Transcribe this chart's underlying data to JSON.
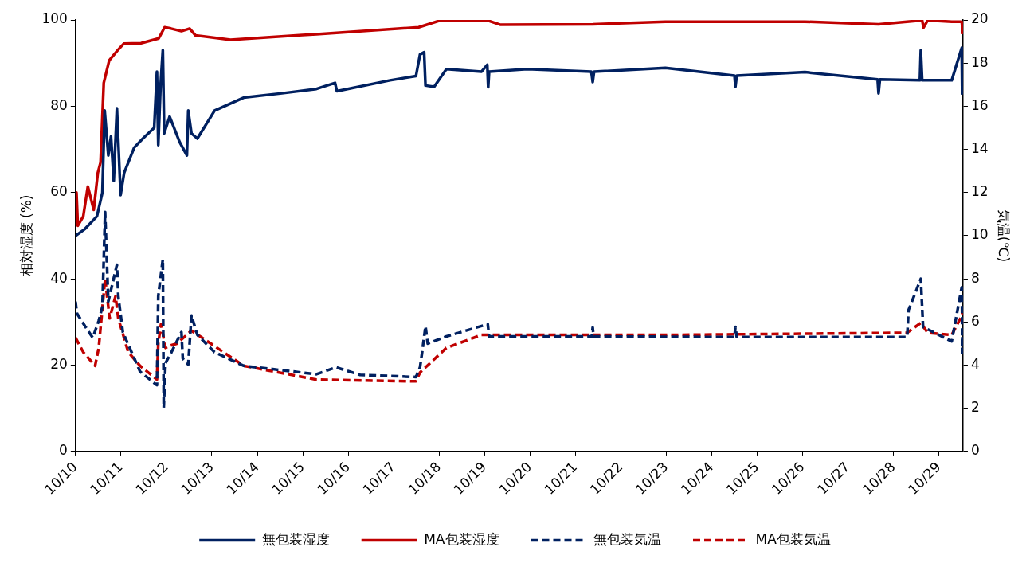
{
  "chart_data": {
    "type": "line",
    "ylabel": "相対湿度 (%)",
    "y2label": "気温(℃)",
    "xlim": [
      "--10-10",
      "--10-29T12:43"
    ],
    "xticks": [
      {
        "value": "--10-10",
        "label": "10/10"
      },
      {
        "value": "--10-11",
        "label": "10/11"
      },
      {
        "value": "--10-12",
        "label": "10/12"
      },
      {
        "value": "--10-13",
        "label": "10/13"
      },
      {
        "value": "--10-14",
        "label": "10/14"
      },
      {
        "value": "--10-15",
        "label": "10/15"
      },
      {
        "value": "--10-16",
        "label": "10/16"
      },
      {
        "value": "--10-17",
        "label": "10/17"
      },
      {
        "value": "--10-18",
        "label": "10/18"
      },
      {
        "value": "--10-19",
        "label": "10/19"
      },
      {
        "value": "--10-20",
        "label": "10/20"
      },
      {
        "value": "--10-21",
        "label": "10/21"
      },
      {
        "value": "--10-22",
        "label": "10/22"
      },
      {
        "value": "--10-23",
        "label": "10/23"
      },
      {
        "value": "--10-24",
        "label": "10/24"
      },
      {
        "value": "--10-25",
        "label": "10/25"
      },
      {
        "value": "--10-26",
        "label": "10/26"
      },
      {
        "value": "--10-27",
        "label": "10/27"
      },
      {
        "value": "--10-28",
        "label": "10/28"
      },
      {
        "value": "--10-29",
        "label": "10/29"
      }
    ],
    "ylim": [
      0,
      100
    ],
    "yticks": [
      0,
      20,
      40,
      60,
      80,
      100
    ],
    "y2lim": [
      0,
      20
    ],
    "y2ticks": [
      0,
      2,
      4,
      6,
      8,
      10,
      12,
      14,
      16,
      18,
      20
    ],
    "grid": false,
    "legend": "bottom",
    "marker": "none",
    "series": [
      {
        "name": "無包装湿度",
        "color": "#002060",
        "line_style": "solid",
        "x": [
          "--10-10T00:00",
          "--10-10T05:02",
          "--10-10T11:17",
          "--10-10T14:10",
          "--10-10T15:22",
          "--10-10T17:17",
          "--10-10T18:43",
          "--10-10T20:10",
          "--10-10T21:50",
          "--10-10T23:46",
          "--10-11T01:41",
          "--10-11T06:58",
          "--10-11T11:31",
          "--10-11T17:31",
          "--10-11T18:58",
          "--10-11T19:41",
          "--10-11T20:53",
          "--10-11T22:05",
          "--10-11T22:48",
          "--10-12T01:41",
          "--10-12T06:58",
          "--10-12T10:48",
          "--10-12T11:31",
          "--10-12T13:12",
          "--10-12T16:19",
          "--10-13T01:26",
          "--10-13T16:48",
          "--10-14T12:58",
          "--10-15T07:12",
          "--10-15T17:02",
          "--10-15T18:00",
          "--10-16T22:05",
          "--10-17T11:46",
          "--10-17T13:55",
          "--10-17T16:05",
          "--10-17T16:48",
          "--10-17T21:22",
          "--10-18T03:50",
          "--10-18T22:19",
          "--10-19T01:26",
          "--10-19T01:55",
          "--10-19T02:24",
          "--10-19T22:34",
          "--10-21T08:24",
          "--10-21T09:07",
          "--10-21T09:50",
          "--10-22T23:31",
          "--10-24T12:00",
          "--10-24T12:29",
          "--10-24T13:12",
          "--10-26T01:12",
          "--10-27T15:36",
          "--10-27T16:05",
          "--10-27T16:48",
          "--10-28T13:55",
          "--10-28T14:24",
          "--10-28T15:07",
          "--10-29T06:43",
          "--10-29T12:00",
          "--10-29T12:14",
          "--10-29T12:43"
        ],
        "values": [
          50,
          51.6,
          54.5,
          60,
          79,
          68.6,
          73,
          62.7,
          79.5,
          59.4,
          64.6,
          70.4,
          72.5,
          75,
          88,
          71,
          84.7,
          93,
          73.7,
          77.6,
          71.7,
          68.6,
          79,
          73.7,
          72.5,
          79,
          82,
          83,
          84,
          85.4,
          83.5,
          86,
          87,
          92,
          92.5,
          84.8,
          84.5,
          88.6,
          88,
          89.6,
          84.4,
          88,
          88.6,
          88,
          85.6,
          88,
          88.9,
          87.1,
          84.5,
          87.1,
          87.9,
          86.2,
          83,
          86.2,
          86,
          93,
          86,
          86,
          93.5,
          83,
          86
        ]
      },
      {
        "name": "MA包装湿度",
        "color": "#c00000",
        "line_style": "solid",
        "x": [
          "--10-10T00:00",
          "--10-10T00:29",
          "--10-10T01:12",
          "--10-10T04:05",
          "--10-10T06:29",
          "--10-10T09:36",
          "--10-10T11:46",
          "--10-10T13:12",
          "--10-10T14:53",
          "--10-10T17:46",
          "--10-10T22:19",
          "--10-11T01:26",
          "--10-11T10:34",
          "--10-11T19:55",
          "--10-11T23:02",
          "--10-12T02:24",
          "--10-12T07:55",
          "--10-12T12:14",
          "--10-12T15:22",
          "--10-13T09:50",
          "--10-14T23:46",
          "--10-15T07:12",
          "--10-17T13:12",
          "--10-18T00:00",
          "--10-19T02:10",
          "--10-19T08:10",
          "--10-21T09:07",
          "--10-22T23:31",
          "--10-26T01:12",
          "--10-27T16:05",
          "--10-28T15:07",
          "--10-28T15:50",
          "--10-28T18:00",
          "--10-29T06:43",
          "--10-29T12:00",
          "--10-29T12:43"
        ],
        "values": [
          52.3,
          60,
          52.3,
          54.5,
          61.4,
          56,
          64.6,
          67,
          85.4,
          90.6,
          93,
          94.5,
          94.6,
          95.7,
          98.3,
          98,
          97.4,
          98,
          96.4,
          95.4,
          96.5,
          96.7,
          98.3,
          99.8,
          99.8,
          98.9,
          99,
          99.6,
          99.6,
          99,
          99.9,
          98.2,
          99.9,
          99.6,
          99.6,
          96.7
        ]
      },
      {
        "name": "無包装気温",
        "color": "#002060",
        "line_style": "dashed",
        "axis": "y2",
        "x": [
          "--10-10T00:00",
          "--10-10T00:43",
          "--10-10T05:02",
          "--10-10T09:07",
          "--10-10T12:14",
          "--10-10T14:10",
          "--10-10T15:36",
          "--10-10T17:17",
          "--10-10T21:50",
          "--10-10T22:34",
          "--10-11T00:58",
          "--10-11T10:05",
          "--10-11T18:58",
          "--10-11T19:41",
          "--10-11T22:05",
          "--10-11T22:34",
          "--10-11T23:31",
          "--10-12T02:38",
          "--10-12T07:55",
          "--10-12T08:38",
          "--10-12T11:31",
          "--10-12T13:12",
          "--10-12T16:19",
          "--10-13T01:26",
          "--10-13T16:48",
          "--10-15T07:12",
          "--10-15T17:31",
          "--10-16T06:14",
          "--10-17T11:46",
          "--10-17T13:55",
          "--10-17T14:53",
          "--10-17T16:48",
          "--10-17T18:00",
          "--10-18T03:50",
          "--10-19T01:41",
          "--10-19T02:24",
          "--10-21T08:38",
          "--10-21T09:07",
          "--10-21T09:36",
          "--10-24T12:00",
          "--10-24T12:29",
          "--10-24T13:12",
          "--10-28T07:12",
          "--10-28T07:55",
          "--10-28T14:24",
          "--10-28T15:36",
          "--10-29T06:43",
          "--10-29T12:00",
          "--10-29T12:29",
          "--10-29T12:43"
        ],
        "values": [
          6.95,
          6.4,
          5.8,
          5.27,
          6.06,
          6.7,
          11.1,
          6.95,
          8.65,
          7.2,
          5.53,
          3.7,
          3.07,
          7.2,
          8.9,
          2.03,
          4.1,
          4.6,
          5.53,
          4.3,
          4.03,
          6.3,
          5.4,
          4.6,
          3.97,
          3.58,
          3.9,
          3.55,
          3.45,
          3.9,
          4.5,
          5.8,
          5,
          5.33,
          5.9,
          5.33,
          5.33,
          5.75,
          5.33,
          5.3,
          5.77,
          5.3,
          5.3,
          6.55,
          8,
          5.77,
          5.1,
          7.6,
          4.58,
          5.3
        ]
      },
      {
        "name": "MA包装気温",
        "color": "#c00000",
        "line_style": "dashed",
        "axis": "y2",
        "x": [
          "--10-10T00:00",
          "--10-10T04:05",
          "--10-10T10:19",
          "--10-10T12:14",
          "--10-10T15:36",
          "--10-10T18:00",
          "--10-10T21:07",
          "--10-10T22:34",
          "--10-11T03:50",
          "--10-11T10:05",
          "--10-11T18:58",
          "--10-11T19:41",
          "--10-11T21:07",
          "--10-11T23:31",
          "--10-12T01:41",
          "--10-12T05:31",
          "--10-12T13:12",
          "--10-13T01:26",
          "--10-13T16:48",
          "--10-15T07:12",
          "--10-17T11:46",
          "--10-17T13:55",
          "--10-18T03:50",
          "--10-18T22:19",
          "--10-22T23:31",
          "--10-28T07:12",
          "--10-28T14:24",
          "--10-28T18:00",
          "--10-29T06:43",
          "--10-29T12:43"
        ],
        "values": [
          5.27,
          4.6,
          3.97,
          4.8,
          8,
          6.17,
          7.2,
          6.17,
          4.6,
          3.97,
          3.33,
          5,
          5.9,
          4.8,
          4.9,
          5,
          5.6,
          4.88,
          3.97,
          3.33,
          3.25,
          3.66,
          4.8,
          5.4,
          5.4,
          5.5,
          5.96,
          5.5,
          5.4,
          6.4
        ]
      }
    ]
  }
}
